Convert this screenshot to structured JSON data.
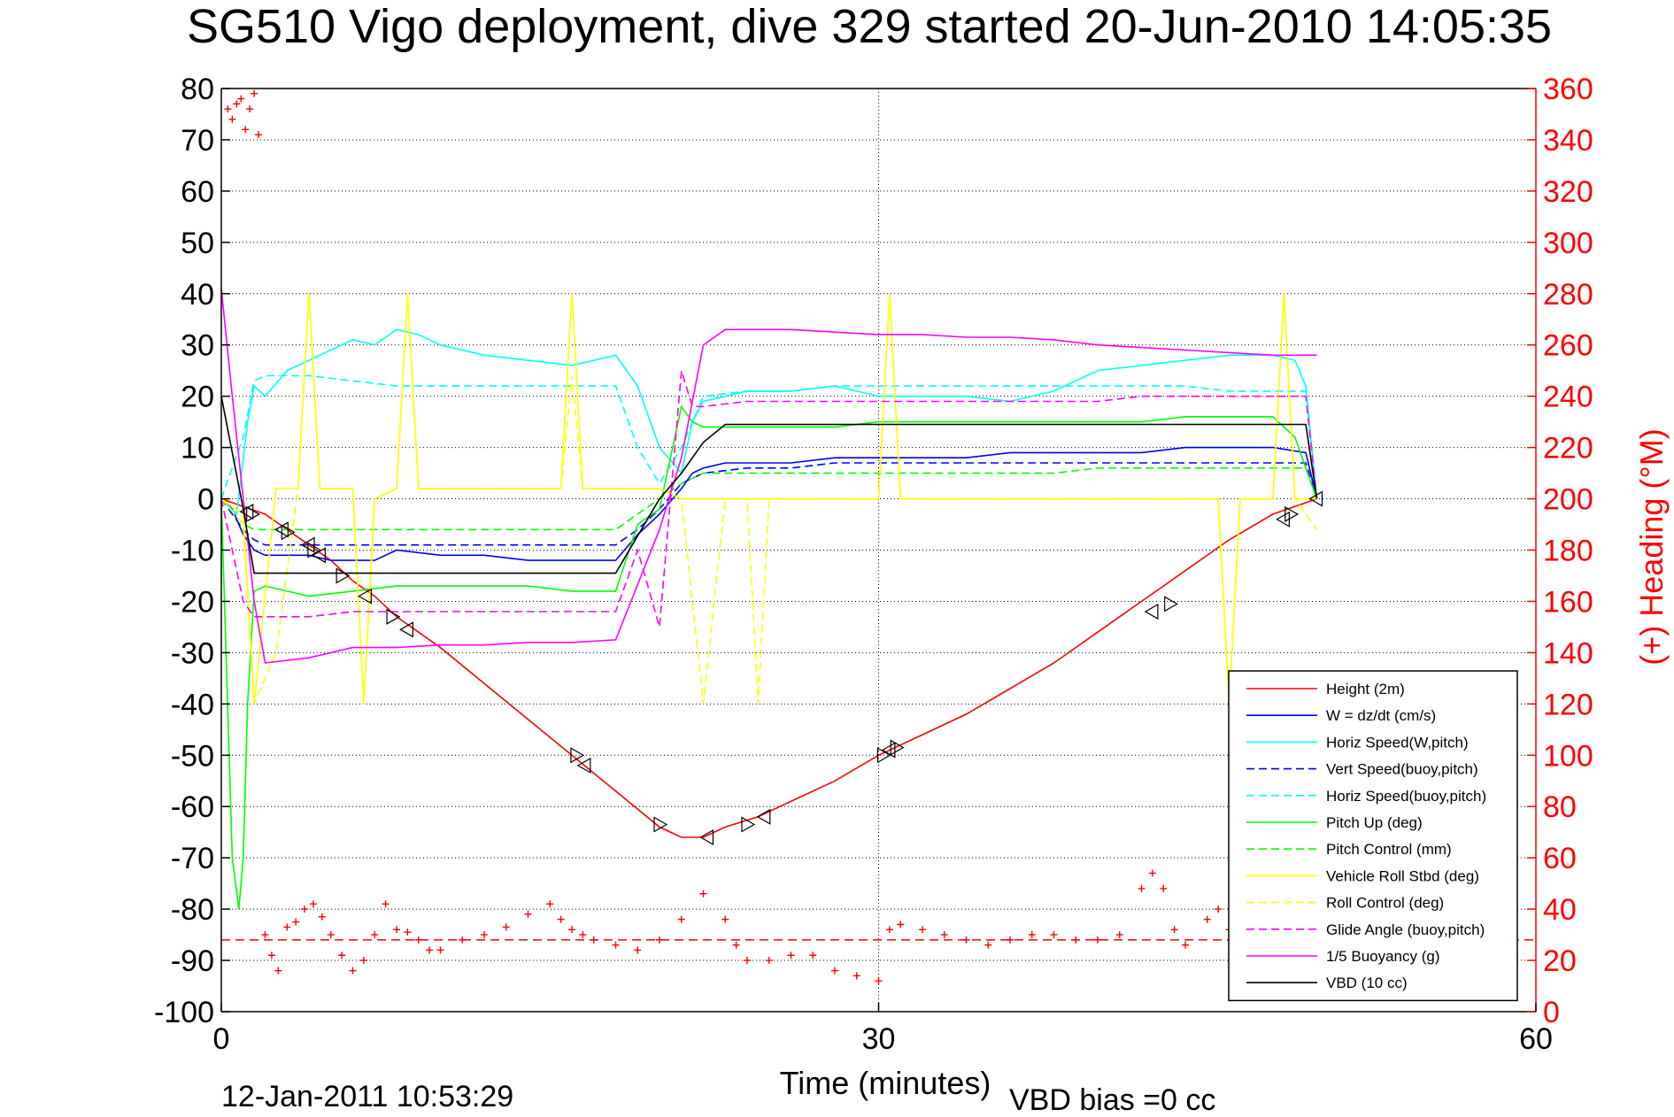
{
  "chart_data": {
    "type": "line",
    "title": "SG510 Vigo deployment, dive 329 started 20-Jun-2010 14:05:35",
    "xlabel": "Time (minutes)",
    "ylabel_right": "(+) Heading (°M)",
    "footer_left": "12-Jan-2011 10:53:29",
    "footer_right": "VBD bias =0 cc",
    "xlim": [
      0,
      60
    ],
    "ylim_left": [
      -100,
      80
    ],
    "ylim_right": [
      0,
      360
    ],
    "x_ticks": [
      0,
      30,
      60
    ],
    "y_ticks_left": [
      80,
      70,
      60,
      50,
      40,
      30,
      20,
      10,
      0,
      -10,
      -20,
      -30,
      -40,
      -50,
      -60,
      -70,
      -80,
      -90,
      -100
    ],
    "y_ticks_right": [
      360,
      340,
      320,
      300,
      280,
      260,
      240,
      220,
      200,
      180,
      160,
      140,
      120,
      100,
      80,
      60,
      40,
      20,
      0
    ],
    "grid": true,
    "legend_position": "bottom-right",
    "colors": {
      "red": "#ff0000",
      "blue": "#0000ff",
      "cyan": "#00ffff",
      "green": "#00ff00",
      "yellow": "#ffff00",
      "magenta": "#ff00ff",
      "black": "#000000",
      "axis_right": "#ff0000"
    },
    "series": [
      {
        "name": "Height (2m)",
        "color": "#ff0000",
        "style": "solid",
        "x": [
          0,
          1,
          2,
          3,
          4,
          5,
          6,
          7,
          8,
          9,
          10,
          12,
          14,
          16,
          18,
          20,
          21,
          22,
          23,
          24.5,
          26,
          28,
          30,
          32,
          34,
          36,
          38,
          40,
          42,
          43,
          44,
          46,
          48,
          50
        ],
        "y": [
          0,
          -1.5,
          -3,
          -6,
          -9,
          -12,
          -16,
          -19,
          -23,
          -26,
          -29,
          -36,
          -43,
          -50,
          -57,
          -64,
          -66,
          -66,
          -64,
          -62,
          -59,
          -55,
          -50,
          -46,
          -42,
          -37,
          -32,
          -26,
          -20,
          -17,
          -14,
          -8,
          -3,
          0
        ]
      },
      {
        "name": "W = dz/dt (cm/s)",
        "color": "#0000ff",
        "style": "solid",
        "x": [
          0,
          0.5,
          1,
          1.5,
          2,
          3,
          4,
          5,
          6,
          7,
          8,
          10,
          12,
          14,
          16,
          18,
          19,
          20,
          21,
          21.5,
          22,
          23,
          24,
          26,
          28,
          30,
          32,
          34,
          36,
          38,
          40,
          42,
          44,
          46,
          48,
          49.5,
          50
        ],
        "y": [
          0,
          -2,
          -7,
          -10,
          -11,
          -11,
          -11,
          -12,
          -12,
          -12,
          -10,
          -11,
          -11,
          -12,
          -12,
          -12,
          -7,
          -3,
          2,
          5,
          6,
          7,
          7,
          7,
          8,
          8,
          8,
          8,
          9,
          9,
          9,
          9,
          10,
          10,
          10,
          9,
          0
        ]
      },
      {
        "name": "Horiz Speed(W,pitch)",
        "color": "#00ffff",
        "style": "solid",
        "x": [
          0,
          0.7,
          1.2,
          1.5,
          2,
          3,
          4,
          5,
          6,
          7,
          8,
          9,
          10,
          12,
          14,
          16,
          18,
          19,
          20,
          21,
          21.5,
          22,
          23,
          24,
          26,
          28,
          30,
          32,
          34,
          36,
          38,
          40,
          42,
          44,
          46,
          48,
          49,
          49.5,
          50
        ],
        "y": [
          0,
          -3,
          15,
          22,
          20,
          25,
          27,
          29,
          31,
          30,
          33,
          32,
          30,
          28,
          27,
          26,
          28,
          22,
          10,
          5,
          15,
          19,
          20,
          21,
          21,
          22,
          20,
          20,
          20,
          19,
          21,
          25,
          26,
          27,
          28,
          28,
          27,
          22,
          0
        ]
      },
      {
        "name": "Vert Speed(buoy,pitch)",
        "color": "#0000ff",
        "style": "dashed",
        "x": [
          0,
          1,
          1.5,
          2,
          4,
          6,
          8,
          10,
          12,
          14,
          16,
          18,
          19,
          20,
          21,
          22,
          24,
          26,
          28,
          30,
          32,
          34,
          36,
          38,
          40,
          42,
          44,
          46,
          48,
          49.5,
          50
        ],
        "y": [
          0,
          -6,
          -8,
          -9,
          -9,
          -9,
          -9,
          -9,
          -9,
          -9,
          -9,
          -9,
          -6,
          -2,
          3,
          5,
          6,
          6,
          7,
          7,
          7,
          7,
          7,
          7,
          7,
          7,
          7,
          7,
          7,
          7,
          0
        ]
      },
      {
        "name": "Horiz Speed(buoy,pitch)",
        "color": "#00ffff",
        "style": "dashed",
        "x": [
          0,
          1,
          1.5,
          2,
          4,
          6,
          8,
          10,
          12,
          14,
          16,
          18,
          19,
          20,
          21,
          22,
          24,
          26,
          28,
          30,
          32,
          34,
          36,
          38,
          40,
          42,
          44,
          46,
          48,
          49.5,
          50
        ],
        "y": [
          0,
          12,
          23,
          24,
          24,
          23,
          22,
          22,
          22,
          22,
          22,
          22,
          10,
          3,
          10,
          20,
          21,
          21,
          22,
          22,
          22,
          22,
          22,
          22,
          22,
          22,
          22,
          21,
          21,
          21,
          0
        ]
      },
      {
        "name": "Pitch Up (deg)",
        "color": "#00ff00",
        "style": "solid",
        "x": [
          0,
          0.5,
          0.8,
          1,
          1.2,
          1.5,
          2,
          3,
          4,
          6,
          8,
          10,
          12,
          14,
          16,
          18,
          19,
          20,
          21,
          21.5,
          22,
          24,
          26,
          28,
          30,
          32,
          34,
          36,
          38,
          40,
          42,
          44,
          46,
          48,
          49,
          50
        ],
        "y": [
          0,
          -70,
          -80,
          -70,
          -40,
          -18,
          -17,
          -18,
          -19,
          -18,
          -17,
          -17,
          -17,
          -17,
          -18,
          -18,
          -5,
          -2,
          18,
          15,
          14,
          14,
          14,
          14,
          15,
          15,
          15,
          15,
          15,
          15,
          15,
          16,
          16,
          16,
          12,
          0
        ]
      },
      {
        "name": "Pitch Control (mm)",
        "color": "#00ff00",
        "style": "dashed",
        "x": [
          0,
          1,
          1.5,
          2,
          4,
          6,
          8,
          10,
          12,
          14,
          16,
          18,
          19,
          20,
          21,
          22,
          24,
          26,
          28,
          30,
          32,
          34,
          36,
          38,
          40,
          42,
          44,
          46,
          48,
          49.5,
          50
        ],
        "y": [
          0,
          -5,
          -6,
          -6,
          -6,
          -6,
          -6,
          -6,
          -6,
          -6,
          -6,
          -6,
          -3,
          0,
          3,
          5,
          5,
          5,
          5,
          5,
          5,
          5,
          5,
          5,
          6,
          6,
          6,
          6,
          6,
          6,
          0
        ]
      },
      {
        "name": "Vehicle Roll Stbd (deg)",
        "color": "#ffff00",
        "style": "solid",
        "x": [
          0,
          1,
          1.5,
          2.5,
          3.5,
          4,
          4.5,
          5,
          6,
          6.5,
          7,
          8,
          8.5,
          9,
          10,
          14,
          15.5,
          16,
          16.5,
          17,
          18,
          20,
          21,
          22,
          24,
          26,
          28,
          30,
          30.5,
          31,
          32,
          36,
          40,
          42,
          44,
          45.5,
          46,
          46.5,
          47,
          48,
          48.5,
          49,
          50
        ],
        "y": [
          0,
          -3,
          -40,
          2,
          2,
          40,
          2,
          2,
          2,
          -40,
          0,
          2,
          40,
          2,
          2,
          2,
          2,
          40,
          2,
          2,
          2,
          2,
          0,
          0,
          0,
          0,
          0,
          0,
          40,
          0,
          0,
          0,
          0,
          0,
          0,
          0,
          -40,
          0,
          0,
          0,
          40,
          0,
          0
        ]
      },
      {
        "name": "Roll Control (deg)",
        "color": "#ffff00",
        "style": "dashed",
        "x": [
          0,
          1,
          1.5,
          2.5,
          3.5,
          4,
          4.5,
          5,
          6,
          6.5,
          7,
          8,
          8.5,
          9,
          10,
          14,
          15.5,
          16,
          16.5,
          17,
          18,
          20,
          21,
          22,
          23,
          24,
          24.5,
          25,
          26,
          28,
          30,
          30.5,
          31,
          32,
          36,
          40,
          42,
          44,
          45.5,
          46,
          46.5,
          47,
          48,
          48.5,
          49,
          50
        ],
        "y": [
          0,
          -5,
          -40,
          -30,
          2,
          40,
          2,
          2,
          2,
          -40,
          0,
          2,
          40,
          2,
          2,
          2,
          2,
          24,
          2,
          2,
          2,
          2,
          0,
          -40,
          0,
          0,
          -40,
          0,
          0,
          0,
          0,
          40,
          0,
          0,
          0,
          0,
          0,
          0,
          0,
          -40,
          0,
          0,
          0,
          40,
          0,
          -6
        ]
      },
      {
        "name": "Glide Angle (buoy,pitch)",
        "color": "#ff00ff",
        "style": "dashed",
        "x": [
          0,
          1,
          1.5,
          2,
          4,
          6,
          8,
          10,
          12,
          14,
          16,
          18,
          19,
          20,
          21,
          21.5,
          22,
          24,
          26,
          28,
          30,
          32,
          34,
          36,
          38,
          40,
          42,
          44,
          46,
          48,
          49.5,
          50
        ],
        "y": [
          0,
          -20,
          -23,
          -23,
          -23,
          -22,
          -22,
          -22,
          -22,
          -22,
          -22,
          -22,
          -10,
          -25,
          25,
          18,
          18,
          19,
          19,
          19,
          19,
          19,
          19,
          19,
          19,
          19,
          20,
          20,
          20,
          20,
          20,
          0
        ]
      },
      {
        "name": "1/5 Buoyancy (g)",
        "color": "#ff00ff",
        "style": "solid",
        "x": [
          0,
          0.5,
          1,
          1.5,
          2,
          4,
          6,
          8,
          10,
          12,
          14,
          16,
          18,
          20,
          21,
          22,
          23,
          24,
          26,
          28,
          30,
          32,
          34,
          36,
          38,
          40,
          42,
          44,
          46,
          48,
          50
        ],
        "y": [
          41,
          20,
          0,
          -20,
          -32,
          -31,
          -29,
          -29,
          -28.5,
          -28.5,
          -28,
          -28,
          -27.5,
          -6,
          8,
          30,
          33,
          33,
          33,
          32.5,
          32,
          32,
          31.5,
          31.5,
          31,
          30,
          29.5,
          29,
          28.5,
          28,
          28
        ]
      },
      {
        "name": "VBD (10 cc)",
        "color": "#000000",
        "style": "solid",
        "x": [
          0,
          1,
          1.5,
          2,
          4,
          6,
          8,
          10,
          12,
          14,
          16,
          18,
          20,
          21,
          22,
          23,
          24,
          26,
          28,
          30,
          32,
          34,
          36,
          38,
          40,
          42,
          44,
          46,
          48,
          49.5,
          50
        ],
        "y": [
          20,
          -2,
          -14.5,
          -14.5,
          -14.5,
          -14.5,
          -14.5,
          -14.5,
          -14.5,
          -14.5,
          -14.5,
          -14.5,
          0,
          5,
          11,
          14.5,
          14.5,
          14.5,
          14.5,
          14.5,
          14.5,
          14.5,
          14.5,
          14.5,
          14.5,
          14.5,
          14.5,
          14.5,
          14.5,
          14.5,
          0
        ]
      }
    ],
    "heading": {
      "name": "(+) Heading (°M)",
      "axis": "right",
      "marker": "+",
      "color": "#ff0000",
      "x": [
        0.3,
        0.5,
        0.7,
        0.9,
        1.1,
        1.3,
        1.5,
        1.7,
        2.0,
        2.3,
        2.6,
        3.0,
        3.4,
        3.8,
        4.2,
        4.6,
        5.0,
        5.5,
        6.0,
        6.5,
        7.0,
        7.5,
        8.0,
        8.5,
        9.0,
        9.5,
        10,
        11,
        12,
        13,
        14,
        15,
        15.5,
        16,
        16.5,
        17,
        18,
        19,
        20,
        21,
        22,
        23,
        23.5,
        24,
        25,
        26,
        27,
        28,
        29,
        30,
        30.5,
        31,
        32,
        33,
        34,
        35,
        36,
        37,
        38,
        39,
        40,
        41,
        42,
        42.5,
        43,
        43.5,
        44,
        45,
        45.5,
        46,
        46.5
      ],
      "y": [
        352,
        348,
        354,
        356,
        344,
        352,
        358,
        342,
        30,
        22,
        16,
        33,
        35,
        40,
        42,
        37,
        30,
        22,
        16,
        20,
        30,
        42,
        32,
        31,
        28,
        24,
        24,
        28,
        30,
        33,
        38,
        42,
        36,
        32,
        30,
        28,
        26,
        24,
        28,
        36,
        46,
        36,
        26,
        20,
        20,
        22,
        22,
        16,
        14,
        12,
        32,
        34,
        32,
        30,
        28,
        26,
        28,
        30,
        30,
        28,
        28,
        30,
        48,
        54,
        48,
        32,
        26,
        36,
        40,
        32,
        28
      ]
    },
    "heading_reference": {
      "axis": "right",
      "value": 28,
      "style": "dashed",
      "color": "#ff0000"
    },
    "triangle_markers": {
      "x": [
        1.2,
        1.4,
        2.8,
        3.0,
        4.0,
        4.2,
        4.5,
        5.5,
        6.6,
        7.8,
        8.5,
        16.2,
        16.6,
        20.0,
        22.2,
        24.0,
        24.8,
        30.2,
        30.5,
        30.8,
        42.5,
        43.3,
        48.5,
        48.8,
        50.0
      ],
      "y": [
        -2.5,
        -3.0,
        -6.0,
        -6.5,
        -9.0,
        -10.0,
        -11.0,
        -15.0,
        -19.0,
        -23.0,
        -25.5,
        -50.0,
        -52.0,
        -63.5,
        -66.0,
        -63.5,
        -62.0,
        -50.0,
        -49.0,
        -48.5,
        -22.0,
        -20.5,
        -4.0,
        -3.0,
        0.0
      ]
    }
  }
}
